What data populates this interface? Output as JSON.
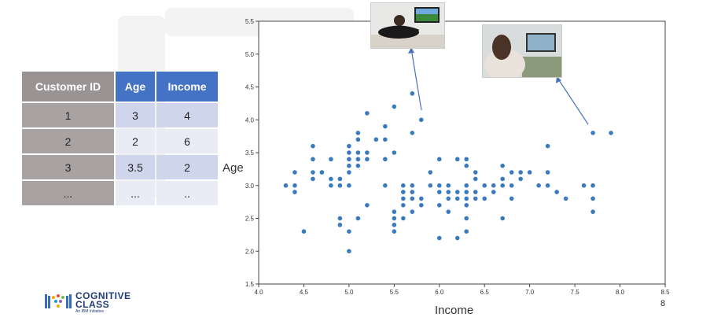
{
  "table": {
    "headers": [
      "Customer ID",
      "Age",
      "Income"
    ],
    "rows": [
      [
        "1",
        "3",
        "4"
      ],
      [
        "2",
        "2",
        "6"
      ],
      [
        "3",
        "3.5",
        "2"
      ],
      [
        "...",
        "...",
        ".."
      ]
    ]
  },
  "chart_data": {
    "type": "scatter",
    "xlabel": "Income",
    "ylabel": "Age",
    "xlim": [
      4.0,
      8.5
    ],
    "ylim": [
      1.5,
      5.5
    ],
    "xticks": [
      "4.0",
      "4.5",
      "5.0",
      "5.5",
      "6.0",
      "6.5",
      "7.0",
      "7.5",
      "8.0",
      "8.5"
    ],
    "yticks": [
      "1.5",
      "2.0",
      "2.5",
      "3.0",
      "3.5",
      "4.0",
      "4.5",
      "5.0",
      "5.5"
    ],
    "color": "#3a7bbf",
    "points": [
      [
        4.3,
        3.0
      ],
      [
        4.4,
        3.2
      ],
      [
        4.4,
        3.0
      ],
      [
        4.4,
        2.9
      ],
      [
        4.5,
        2.3
      ],
      [
        4.6,
        3.6
      ],
      [
        4.6,
        3.4
      ],
      [
        4.6,
        3.2
      ],
      [
        4.6,
        3.1
      ],
      [
        4.7,
        3.2
      ],
      [
        4.7,
        3.2
      ],
      [
        4.8,
        3.4
      ],
      [
        4.8,
        3.1
      ],
      [
        4.8,
        3.0
      ],
      [
        4.9,
        3.1
      ],
      [
        4.9,
        3.0
      ],
      [
        4.9,
        2.5
      ],
      [
        4.9,
        2.4
      ],
      [
        5.0,
        3.6
      ],
      [
        5.0,
        3.5
      ],
      [
        5.0,
        3.4
      ],
      [
        5.0,
        3.3
      ],
      [
        5.0,
        3.2
      ],
      [
        5.0,
        3.0
      ],
      [
        5.0,
        2.3
      ],
      [
        5.0,
        2.0
      ],
      [
        5.1,
        3.8
      ],
      [
        5.1,
        3.7
      ],
      [
        5.1,
        3.5
      ],
      [
        5.1,
        3.4
      ],
      [
        5.1,
        3.3
      ],
      [
        5.1,
        2.5
      ],
      [
        5.2,
        4.1
      ],
      [
        5.2,
        3.5
      ],
      [
        5.2,
        3.4
      ],
      [
        5.2,
        2.7
      ],
      [
        5.3,
        3.7
      ],
      [
        5.4,
        3.9
      ],
      [
        5.4,
        3.7
      ],
      [
        5.4,
        3.4
      ],
      [
        5.4,
        3.0
      ],
      [
        5.5,
        4.2
      ],
      [
        5.5,
        3.5
      ],
      [
        5.5,
        2.6
      ],
      [
        5.5,
        2.5
      ],
      [
        5.5,
        2.4
      ],
      [
        5.5,
        2.3
      ],
      [
        5.6,
        3.0
      ],
      [
        5.6,
        2.9
      ],
      [
        5.6,
        2.8
      ],
      [
        5.6,
        2.7
      ],
      [
        5.6,
        2.5
      ],
      [
        5.7,
        4.4
      ],
      [
        5.7,
        3.8
      ],
      [
        5.7,
        3.0
      ],
      [
        5.7,
        2.9
      ],
      [
        5.7,
        2.8
      ],
      [
        5.7,
        2.6
      ],
      [
        5.8,
        4.0
      ],
      [
        5.8,
        2.8
      ],
      [
        5.8,
        2.7
      ],
      [
        5.9,
        3.2
      ],
      [
        5.9,
        3.0
      ],
      [
        6.0,
        3.4
      ],
      [
        6.0,
        3.0
      ],
      [
        6.0,
        2.9
      ],
      [
        6.0,
        2.7
      ],
      [
        6.0,
        2.2
      ],
      [
        6.1,
        3.0
      ],
      [
        6.1,
        2.9
      ],
      [
        6.1,
        2.8
      ],
      [
        6.1,
        2.6
      ],
      [
        6.2,
        3.4
      ],
      [
        6.2,
        2.9
      ],
      [
        6.2,
        2.8
      ],
      [
        6.2,
        2.2
      ],
      [
        6.3,
        3.4
      ],
      [
        6.3,
        3.3
      ],
      [
        6.3,
        3.0
      ],
      [
        6.3,
        2.9
      ],
      [
        6.3,
        2.8
      ],
      [
        6.3,
        2.7
      ],
      [
        6.3,
        2.5
      ],
      [
        6.3,
        2.3
      ],
      [
        6.4,
        3.2
      ],
      [
        6.4,
        3.1
      ],
      [
        6.4,
        2.9
      ],
      [
        6.4,
        2.8
      ],
      [
        6.5,
        3.0
      ],
      [
        6.5,
        2.8
      ],
      [
        6.6,
        3.0
      ],
      [
        6.6,
        2.9
      ],
      [
        6.7,
        3.3
      ],
      [
        6.7,
        3.1
      ],
      [
        6.7,
        3.0
      ],
      [
        6.7,
        2.5
      ],
      [
        6.8,
        3.2
      ],
      [
        6.8,
        3.0
      ],
      [
        6.8,
        2.8
      ],
      [
        6.9,
        3.2
      ],
      [
        6.9,
        3.1
      ],
      [
        7.0,
        3.2
      ],
      [
        7.1,
        3.0
      ],
      [
        7.2,
        3.6
      ],
      [
        7.2,
        3.2
      ],
      [
        7.2,
        3.0
      ],
      [
        7.3,
        2.9
      ],
      [
        7.4,
        2.8
      ],
      [
        7.6,
        3.0
      ],
      [
        7.7,
        3.8
      ],
      [
        7.7,
        3.0
      ],
      [
        7.7,
        2.8
      ],
      [
        7.7,
        2.6
      ],
      [
        7.9,
        3.8
      ]
    ]
  },
  "slide_number": "8",
  "logo": {
    "line1": "COGNITIVE",
    "line2": "CLASS",
    "tagline": "An IBM Initiative"
  },
  "images": [
    "person-watching-tv-icon",
    "woman-watching-tv-icon"
  ]
}
